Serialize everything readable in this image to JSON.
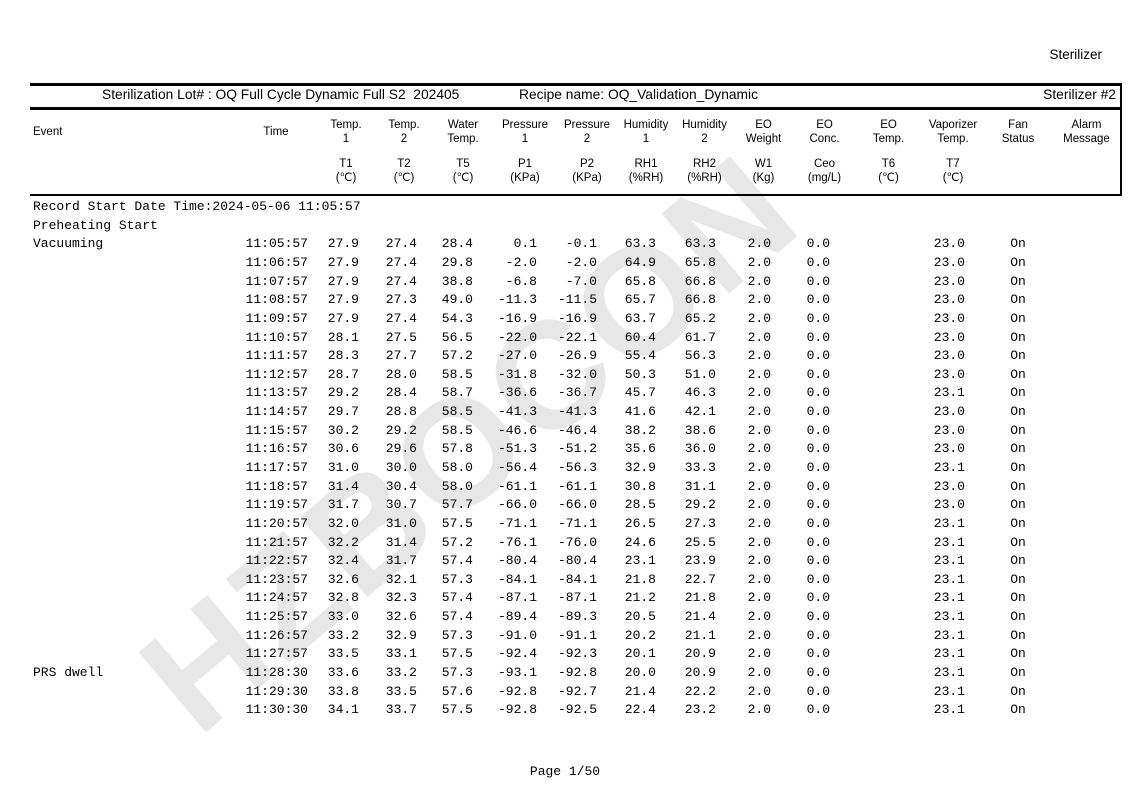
{
  "page": {
    "top_right_label": "Sterilizer",
    "watermark": "HZBOCON",
    "footer_page": "Page 1/50"
  },
  "title_bar": {
    "lot": "Sterilization Lot# : OQ Full Cycle Dynamic Full S2  202405",
    "recipe": "Recipe name: OQ_Validation_Dynamic",
    "sterilizer_no": "Sterilizer #2"
  },
  "table": {
    "record_start_line": "Record Start Date Time:2024-05-06 11:05:57",
    "columns": [
      {
        "key": "event",
        "l1": "Event",
        "l2": "",
        "sym": "",
        "unit": ""
      },
      {
        "key": "time",
        "l1": "Time",
        "l2": "",
        "sym": "",
        "unit": ""
      },
      {
        "key": "temp1",
        "l1": "Temp.",
        "l2": "1",
        "sym": "T1",
        "unit": "(℃)"
      },
      {
        "key": "temp2",
        "l1": "Temp.",
        "l2": "2",
        "sym": "T2",
        "unit": "(℃)"
      },
      {
        "key": "water-temp",
        "l1": "Water",
        "l2": "Temp.",
        "sym": "T5",
        "unit": "(℃)"
      },
      {
        "key": "pressure1",
        "l1": "Pressure",
        "l2": "1",
        "sym": "P1",
        "unit": "(KPa)"
      },
      {
        "key": "pressure2",
        "l1": "Pressure",
        "l2": "2",
        "sym": "P2",
        "unit": "(KPa)"
      },
      {
        "key": "humidity1",
        "l1": "Humidity",
        "l2": "1",
        "sym": "RH1",
        "unit": "(%RH)"
      },
      {
        "key": "humidity2",
        "l1": "Humidity",
        "l2": "2",
        "sym": "RH2",
        "unit": "(%RH)"
      },
      {
        "key": "eo-weight",
        "l1": "EO",
        "l2": "Weight",
        "sym": "W1",
        "unit": "(Kg)"
      },
      {
        "key": "eo-conc",
        "l1": "EO",
        "l2": "Conc.",
        "sym": "Ceo",
        "unit": "(mg/L)"
      },
      {
        "key": "eo-temp",
        "l1": "EO",
        "l2": "Temp.",
        "sym": "T6",
        "unit": "(℃)"
      },
      {
        "key": "vaporizer-temp",
        "l1": "Vaporizer",
        "l2": "Temp.",
        "sym": "T7",
        "unit": "(℃)"
      },
      {
        "key": "fan-status",
        "l1": "Fan",
        "l2": "Status",
        "sym": "",
        "unit": ""
      },
      {
        "key": "alarm-message",
        "l1": "Alarm",
        "l2": "Message",
        "sym": "",
        "unit": ""
      }
    ],
    "groups": [
      {
        "event": "Preheating Start",
        "rows": []
      },
      {
        "event": "Vacuuming",
        "rows": [
          [
            "11:05:57",
            "27.9",
            "27.4",
            "28.4",
            "0.1",
            "-0.1",
            "63.3",
            "63.3",
            "2.0",
            "0.0",
            "",
            "23.0",
            "On",
            ""
          ],
          [
            "11:06:57",
            "27.9",
            "27.4",
            "29.8",
            "-2.0",
            "-2.0",
            "64.9",
            "65.8",
            "2.0",
            "0.0",
            "",
            "23.0",
            "On",
            ""
          ],
          [
            "11:07:57",
            "27.9",
            "27.4",
            "38.8",
            "-6.8",
            "-7.0",
            "65.8",
            "66.8",
            "2.0",
            "0.0",
            "",
            "23.0",
            "On",
            ""
          ],
          [
            "11:08:57",
            "27.9",
            "27.3",
            "49.0",
            "-11.3",
            "-11.5",
            "65.7",
            "66.8",
            "2.0",
            "0.0",
            "",
            "23.0",
            "On",
            ""
          ],
          [
            "11:09:57",
            "27.9",
            "27.4",
            "54.3",
            "-16.9",
            "-16.9",
            "63.7",
            "65.2",
            "2.0",
            "0.0",
            "",
            "23.0",
            "On",
            ""
          ],
          [
            "11:10:57",
            "28.1",
            "27.5",
            "56.5",
            "-22.0",
            "-22.1",
            "60.4",
            "61.7",
            "2.0",
            "0.0",
            "",
            "23.0",
            "On",
            ""
          ],
          [
            "11:11:57",
            "28.3",
            "27.7",
            "57.2",
            "-27.0",
            "-26.9",
            "55.4",
            "56.3",
            "2.0",
            "0.0",
            "",
            "23.0",
            "On",
            ""
          ],
          [
            "11:12:57",
            "28.7",
            "28.0",
            "58.5",
            "-31.8",
            "-32.0",
            "50.3",
            "51.0",
            "2.0",
            "0.0",
            "",
            "23.0",
            "On",
            ""
          ],
          [
            "11:13:57",
            "29.2",
            "28.4",
            "58.7",
            "-36.6",
            "-36.7",
            "45.7",
            "46.3",
            "2.0",
            "0.0",
            "",
            "23.1",
            "On",
            ""
          ],
          [
            "11:14:57",
            "29.7",
            "28.8",
            "58.5",
            "-41.3",
            "-41.3",
            "41.6",
            "42.1",
            "2.0",
            "0.0",
            "",
            "23.0",
            "On",
            ""
          ],
          [
            "11:15:57",
            "30.2",
            "29.2",
            "58.5",
            "-46.6",
            "-46.4",
            "38.2",
            "38.6",
            "2.0",
            "0.0",
            "",
            "23.0",
            "On",
            ""
          ],
          [
            "11:16:57",
            "30.6",
            "29.6",
            "57.8",
            "-51.3",
            "-51.2",
            "35.6",
            "36.0",
            "2.0",
            "0.0",
            "",
            "23.0",
            "On",
            ""
          ],
          [
            "11:17:57",
            "31.0",
            "30.0",
            "58.0",
            "-56.4",
            "-56.3",
            "32.9",
            "33.3",
            "2.0",
            "0.0",
            "",
            "23.1",
            "On",
            ""
          ],
          [
            "11:18:57",
            "31.4",
            "30.4",
            "58.0",
            "-61.1",
            "-61.1",
            "30.8",
            "31.1",
            "2.0",
            "0.0",
            "",
            "23.0",
            "On",
            ""
          ],
          [
            "11:19:57",
            "31.7",
            "30.7",
            "57.7",
            "-66.0",
            "-66.0",
            "28.5",
            "29.2",
            "2.0",
            "0.0",
            "",
            "23.0",
            "On",
            ""
          ],
          [
            "11:20:57",
            "32.0",
            "31.0",
            "57.5",
            "-71.1",
            "-71.1",
            "26.5",
            "27.3",
            "2.0",
            "0.0",
            "",
            "23.1",
            "On",
            ""
          ],
          [
            "11:21:57",
            "32.2",
            "31.4",
            "57.2",
            "-76.1",
            "-76.0",
            "24.6",
            "25.5",
            "2.0",
            "0.0",
            "",
            "23.1",
            "On",
            ""
          ],
          [
            "11:22:57",
            "32.4",
            "31.7",
            "57.4",
            "-80.4",
            "-80.4",
            "23.1",
            "23.9",
            "2.0",
            "0.0",
            "",
            "23.1",
            "On",
            ""
          ],
          [
            "11:23:57",
            "32.6",
            "32.1",
            "57.3",
            "-84.1",
            "-84.1",
            "21.8",
            "22.7",
            "2.0",
            "0.0",
            "",
            "23.1",
            "On",
            ""
          ],
          [
            "11:24:57",
            "32.8",
            "32.3",
            "57.4",
            "-87.1",
            "-87.1",
            "21.2",
            "21.8",
            "2.0",
            "0.0",
            "",
            "23.1",
            "On",
            ""
          ],
          [
            "11:25:57",
            "33.0",
            "32.6",
            "57.4",
            "-89.4",
            "-89.3",
            "20.5",
            "21.4",
            "2.0",
            "0.0",
            "",
            "23.1",
            "On",
            ""
          ],
          [
            "11:26:57",
            "33.2",
            "32.9",
            "57.3",
            "-91.0",
            "-91.1",
            "20.2",
            "21.1",
            "2.0",
            "0.0",
            "",
            "23.1",
            "On",
            ""
          ],
          [
            "11:27:57",
            "33.5",
            "33.1",
            "57.5",
            "-92.4",
            "-92.3",
            "20.1",
            "20.9",
            "2.0",
            "0.0",
            "",
            "23.1",
            "On",
            ""
          ]
        ]
      },
      {
        "event": "PRS dwell",
        "rows": [
          [
            "11:28:30",
            "33.6",
            "33.2",
            "57.3",
            "-93.1",
            "-92.8",
            "20.0",
            "20.9",
            "2.0",
            "0.0",
            "",
            "23.1",
            "On",
            ""
          ],
          [
            "11:29:30",
            "33.8",
            "33.5",
            "57.6",
            "-92.8",
            "-92.7",
            "21.4",
            "22.2",
            "2.0",
            "0.0",
            "",
            "23.1",
            "On",
            ""
          ],
          [
            "11:30:30",
            "34.1",
            "33.7",
            "57.5",
            "-92.8",
            "-92.5",
            "22.4",
            "23.2",
            "2.0",
            "0.0",
            "",
            "23.1",
            "On",
            ""
          ]
        ]
      }
    ]
  }
}
